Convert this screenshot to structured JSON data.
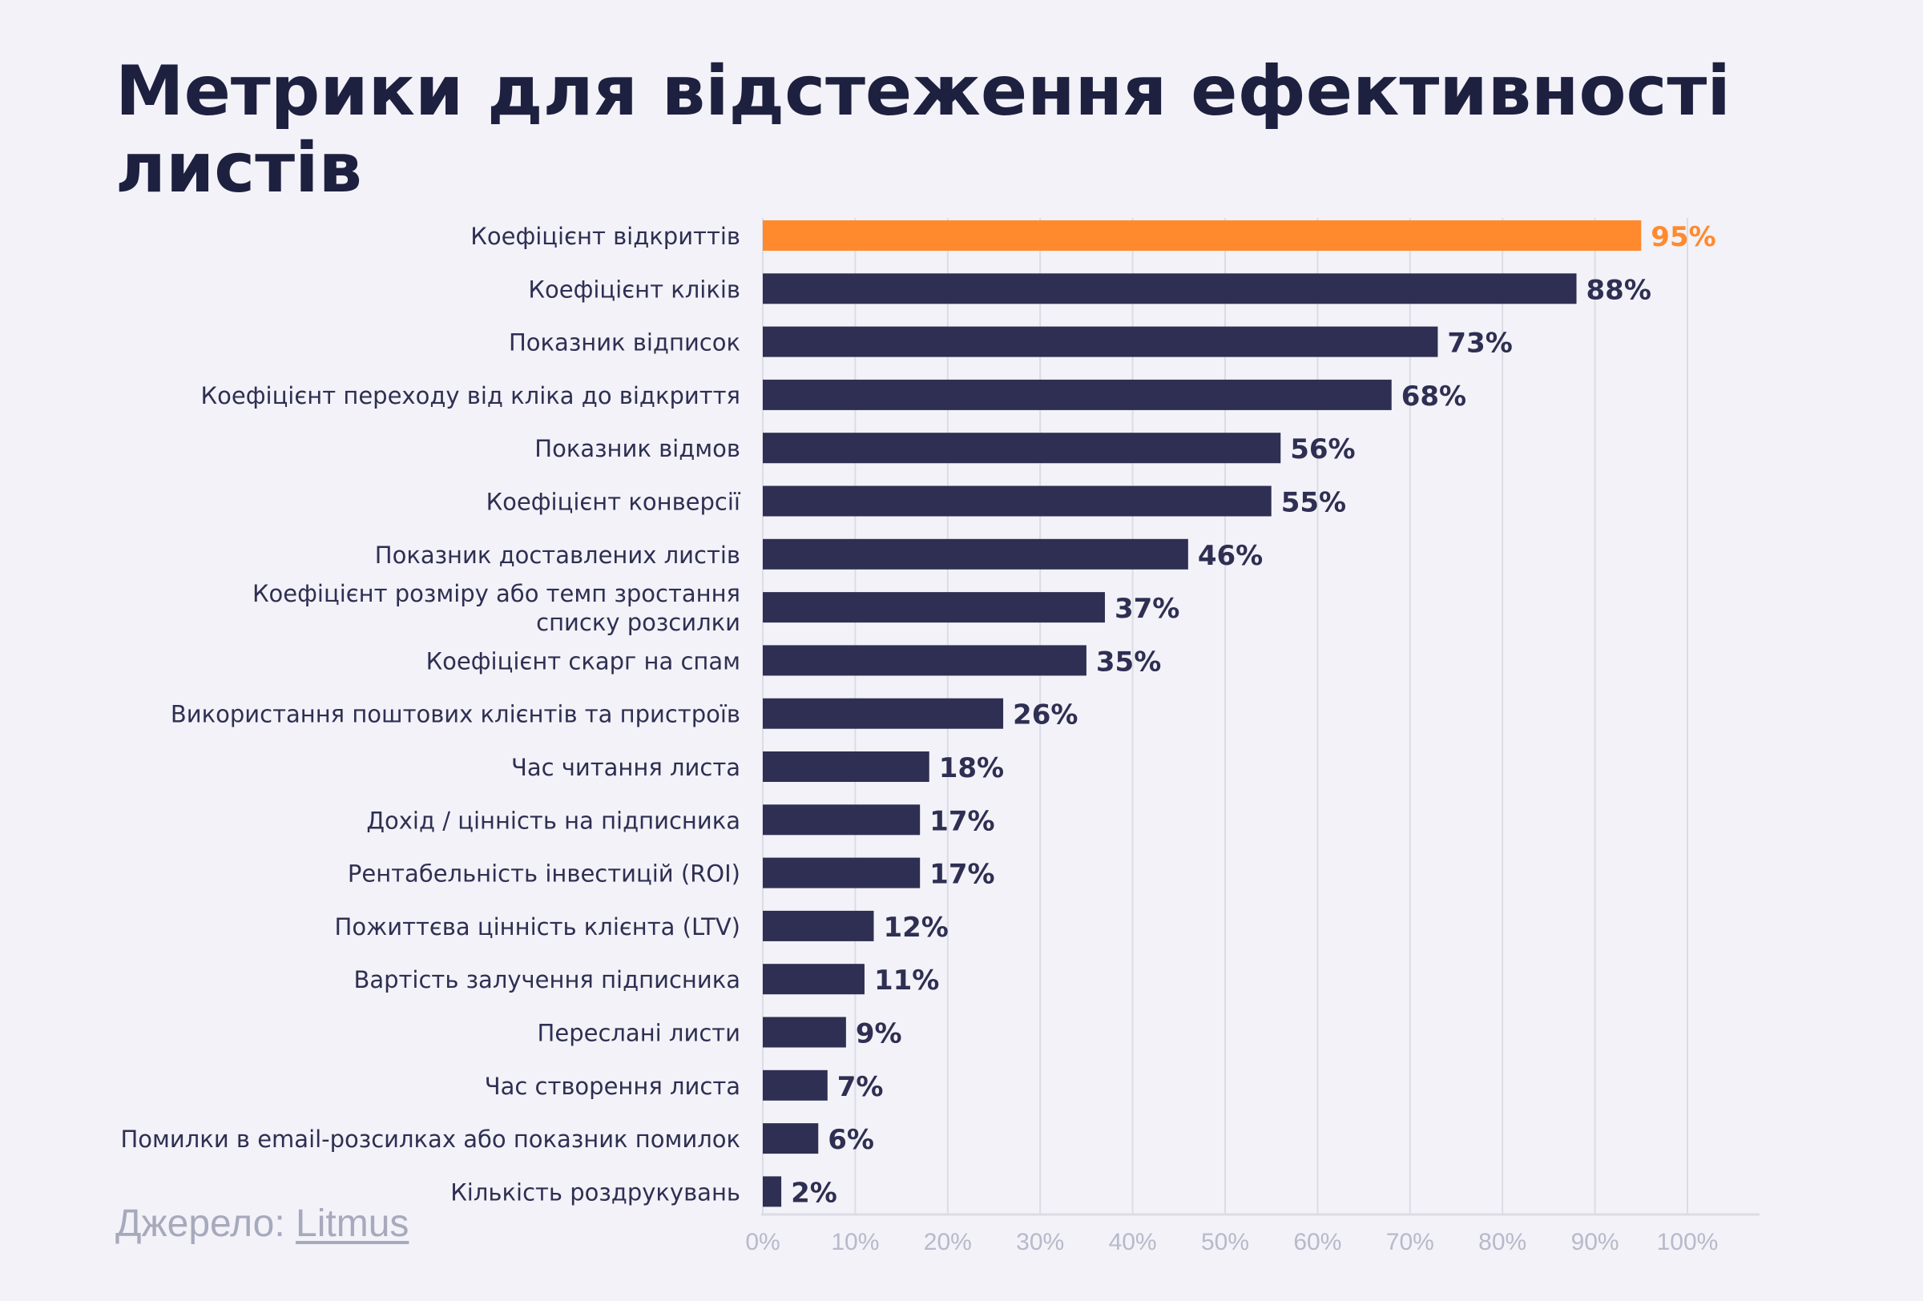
{
  "chart_data": {
    "type": "bar",
    "orientation": "horizontal",
    "title": "Метрики для відстеження ефективності листів",
    "categories": [
      "Коефіцієнт відкриттів",
      "Коефіцієнт кліків",
      "Показник відписок",
      "Коефіцієнт переходу від кліка до відкриття",
      "Показник відмов",
      "Коефіцієнт конверсії",
      "Показник доставлених листів",
      "Коефіцієнт розміру або темп зростання списку розсилки",
      "Коефіцієнт скарг на спам",
      "Використання поштових клієнтів та пристроїв",
      "Час читання листа",
      "Дохід / цінність на підписника",
      "Рентабельність інвестицій (ROI)",
      "Пожиттєва цінність клієнта (LTV)",
      "Вартість залучення підписника",
      "Переслані листи",
      "Час створення листа",
      "Помилки в email-розсилках або показник помилок",
      "Кількість роздрукувань"
    ],
    "category_lines": [
      [
        "Коефіцієнт відкриттів"
      ],
      [
        "Коефіцієнт кліків"
      ],
      [
        "Показник відписок"
      ],
      [
        "Коефіцієнт переходу від кліка до відкриття"
      ],
      [
        "Показник відмов"
      ],
      [
        "Коефіцієнт конверсії"
      ],
      [
        "Показник доставлених листів"
      ],
      [
        "Коефіцієнт розміру або темп зростання",
        "списку розсилки"
      ],
      [
        "Коефіцієнт скарг на спам"
      ],
      [
        "Використання поштових клієнтів та пристроїв"
      ],
      [
        "Час читання листа"
      ],
      [
        "Дохід / цінність на підписника"
      ],
      [
        "Рентабельність інвестицій (ROI)"
      ],
      [
        "Пожиттєва цінність клієнта (LTV)"
      ],
      [
        "Вартість залучення підписника"
      ],
      [
        "Переслані листи"
      ],
      [
        "Час створення листа"
      ],
      [
        "Помилки в email-розсилках або показник помилок"
      ],
      [
        "Кількість роздрукувань"
      ]
    ],
    "values": [
      95,
      88,
      73,
      68,
      56,
      55,
      46,
      37,
      35,
      26,
      18,
      17,
      17,
      12,
      11,
      9,
      7,
      6,
      2
    ],
    "value_labels": [
      "95%",
      "88%",
      "73%",
      "68%",
      "56%",
      "55%",
      "46%",
      "37%",
      "35%",
      "26%",
      "18%",
      "17%",
      "17%",
      "12%",
      "11%",
      "9%",
      "7%",
      "6%",
      "2%"
    ],
    "highlight_index": 0,
    "xlim": [
      0,
      100
    ],
    "x_ticks": [
      0,
      10,
      20,
      30,
      40,
      50,
      60,
      70,
      80,
      90,
      100
    ],
    "x_tick_labels": [
      "0%",
      "10%",
      "20%",
      "30%",
      "40%",
      "50%",
      "60%",
      "70%",
      "80%",
      "90%",
      "100%"
    ],
    "grid": "vertical",
    "legend": "none",
    "colors": {
      "bar": "#2e2f52",
      "highlight": "#ff8a2e",
      "title": "#1e2040",
      "label": "#2e2f52",
      "tick": "#b8b9ca",
      "grid": "#dcdce6",
      "source": "#a7a9bc"
    }
  },
  "source": {
    "prefix": "Джерело: ",
    "link_text": "Litmus"
  }
}
